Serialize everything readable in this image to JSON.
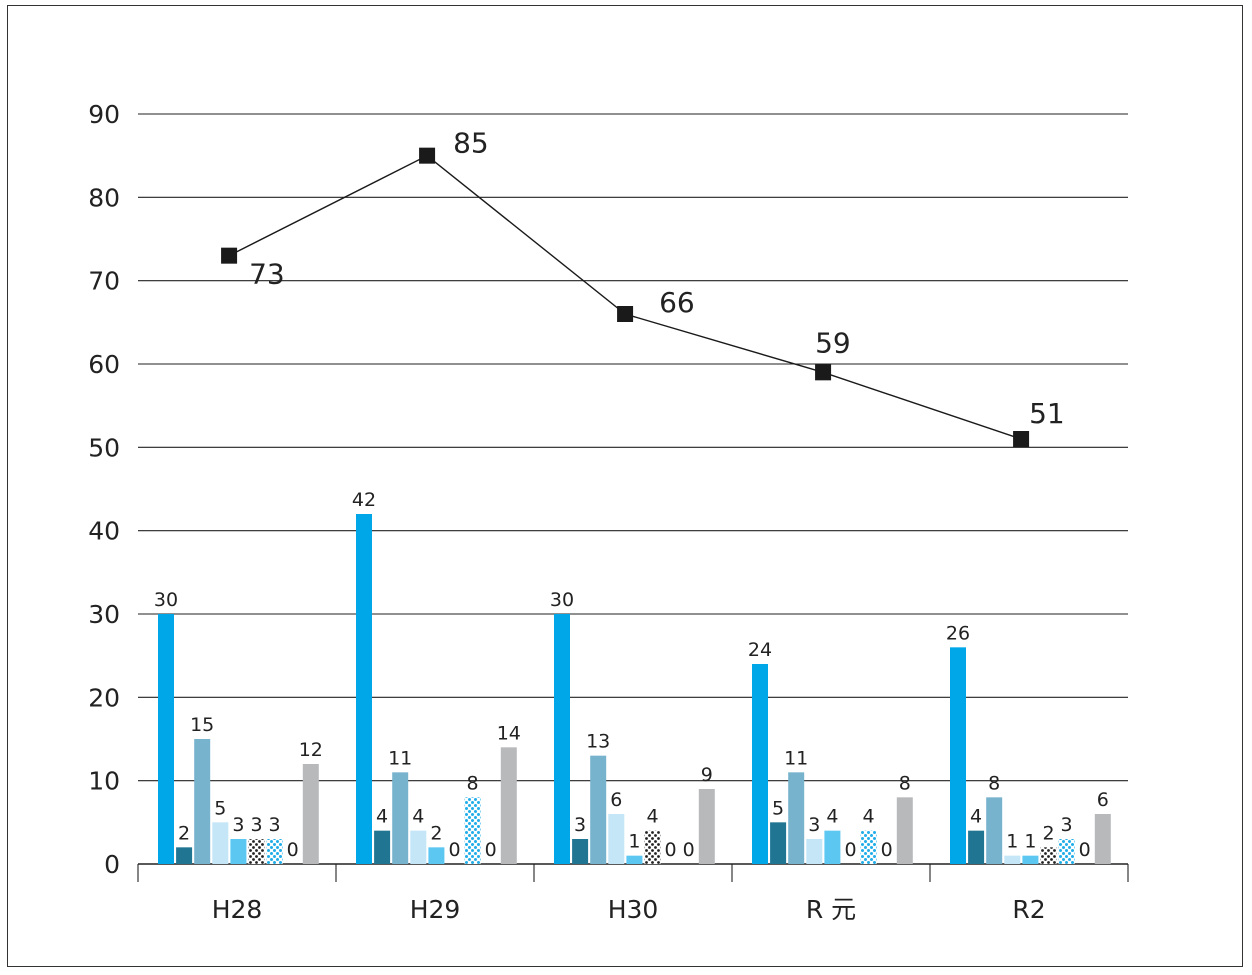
{
  "chart_data": {
    "type": "bar",
    "categories": [
      "H28",
      "H29",
      "H30",
      "R 元",
      "R2"
    ],
    "ylim": [
      0,
      90
    ],
    "yticks": [
      0,
      10,
      20,
      30,
      40,
      50,
      60,
      70,
      80,
      90
    ],
    "grid": true,
    "series": [
      {
        "values": [
          30,
          42,
          30,
          24,
          26
        ],
        "color": "#00a7e8",
        "pattern": "solid"
      },
      {
        "values": [
          2,
          4,
          3,
          5,
          4
        ],
        "color": "#1f7592",
        "pattern": "solid"
      },
      {
        "values": [
          15,
          11,
          13,
          11,
          8
        ],
        "color": "#77b3cd",
        "pattern": "solid"
      },
      {
        "values": [
          5,
          4,
          6,
          3,
          1
        ],
        "color": "#c4e6f7",
        "pattern": "solid"
      },
      {
        "values": [
          3,
          2,
          1,
          4,
          1
        ],
        "color": "#5cc8f2",
        "pattern": "solid"
      },
      {
        "values": [
          3,
          0,
          4,
          0,
          2
        ],
        "color": "#222222",
        "pattern": "dots-dark"
      },
      {
        "values": [
          3,
          8,
          0,
          4,
          3
        ],
        "color": "#21aee8",
        "pattern": "dots-blue"
      },
      {
        "values": [
          0,
          0,
          0,
          0,
          0
        ],
        "color": "#b8b8b8",
        "pattern": "solid"
      },
      {
        "values": [
          12,
          14,
          9,
          8,
          6
        ],
        "color": "#b8b9bb",
        "pattern": "solid"
      }
    ],
    "line_series": {
      "values": [
        73,
        85,
        66,
        59,
        51
      ],
      "color": "#1a1a1a",
      "marker": "square"
    }
  }
}
